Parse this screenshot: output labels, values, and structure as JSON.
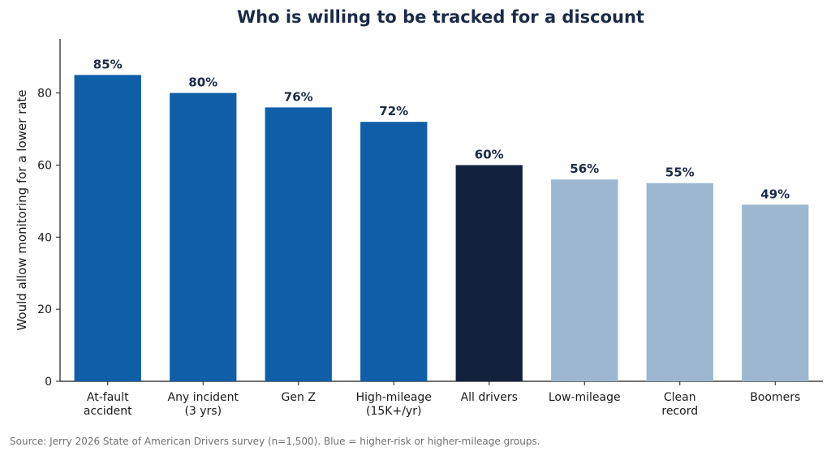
{
  "chart_data": {
    "type": "bar",
    "title": "Who is willing to be tracked for a discount",
    "ylabel": "Would allow monitoring for a lower rate",
    "xlabel": "",
    "ylim": [
      0,
      95
    ],
    "yticks": [
      0,
      20,
      40,
      60,
      80
    ],
    "categories": [
      [
        "At-fault",
        "accident"
      ],
      [
        "Any incident",
        "(3 yrs)"
      ],
      [
        "Gen Z"
      ],
      [
        "High-mileage",
        "(15K+/yr)"
      ],
      [
        "All drivers"
      ],
      [
        "Low-mileage"
      ],
      [
        "Clean",
        "record"
      ],
      [
        "Boomers"
      ]
    ],
    "values": [
      85,
      80,
      76,
      72,
      60,
      56,
      55,
      49
    ],
    "value_labels": [
      "85%",
      "80%",
      "76%",
      "72%",
      "60%",
      "56%",
      "55%",
      "49%"
    ],
    "bar_colors": [
      "#0f5ea8",
      "#0f5ea8",
      "#0f5ea8",
      "#0f5ea8",
      "#14213d",
      "#9db7d1",
      "#9db7d1",
      "#9db7d1"
    ],
    "grid": false,
    "legend": "none"
  },
  "source_note": "Source: Jerry 2026 State of American Drivers survey (n=1,500). Blue = higher-risk or higher-mileage groups.",
  "colors": {
    "title": "#1b2a47",
    "value_label": "#1b2a47",
    "axis": "#1a1a1a"
  }
}
